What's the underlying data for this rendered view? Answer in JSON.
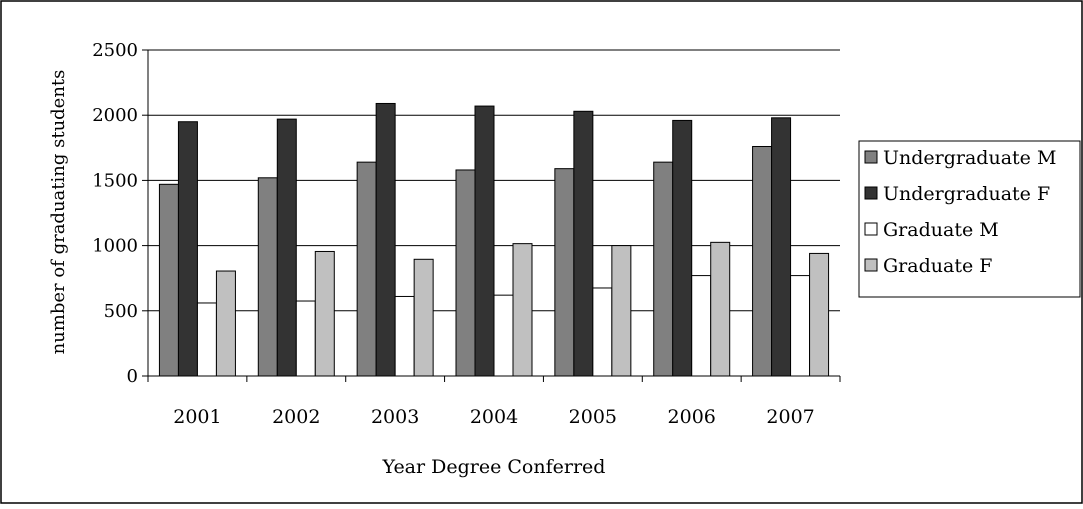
{
  "chart_data": {
    "type": "bar",
    "title": "",
    "xlabel": "Year Degree Conferred",
    "ylabel": "number of graduating students",
    "ylim": [
      0,
      2500
    ],
    "yticks": [
      0,
      500,
      1000,
      1500,
      2000,
      2500
    ],
    "grid": true,
    "legend_position": "right",
    "categories": [
      "2001",
      "2002",
      "2003",
      "2004",
      "2005",
      "2006",
      "2007"
    ],
    "series": [
      {
        "name": "Undergraduate M",
        "color": "#808080",
        "values": [
          1470,
          1520,
          1640,
          1580,
          1590,
          1640,
          1760
        ]
      },
      {
        "name": "Undergraduate F",
        "color": "#333333",
        "values": [
          1950,
          1970,
          2090,
          2070,
          2030,
          1960,
          1980
        ]
      },
      {
        "name": "Graduate M",
        "color": "#ffffff",
        "values": [
          560,
          575,
          610,
          620,
          675,
          770,
          770
        ]
      },
      {
        "name": "Graduate F",
        "color": "#c0c0c0",
        "values": [
          805,
          955,
          895,
          1015,
          1000,
          1025,
          940
        ]
      }
    ]
  }
}
